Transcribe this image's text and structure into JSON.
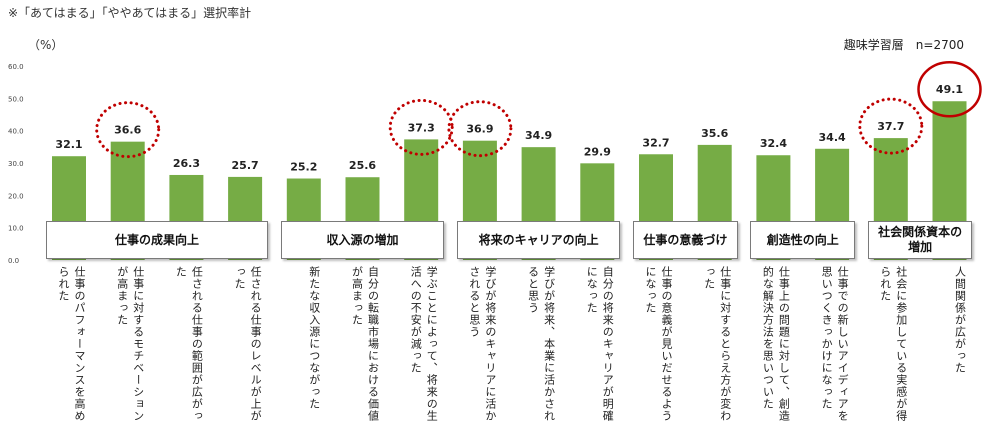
{
  "note": "※「あてはまる」「ややあてはまる」選択率計",
  "unit": "（%）",
  "sample": "趣味学習層　n=2700",
  "chart_data": {
    "type": "bar",
    "title": "",
    "ylabel": "（%）",
    "xlabel": "",
    "ylim": [
      0,
      60
    ],
    "yticks": [
      "60.0",
      "50.0",
      "40.0",
      "30.0",
      "20.0",
      "10.0",
      "0.0"
    ],
    "bar_color": "#76ac45",
    "highlight_color": "#c00000",
    "groups": [
      {
        "label": "仕事の成果向上",
        "count": 4
      },
      {
        "label": "収入源の増加",
        "count": 3
      },
      {
        "label": "将来のキャリアの向上",
        "count": 3
      },
      {
        "label": "仕事の意義づけ",
        "count": 2
      },
      {
        "label": "創造性の向上",
        "count": 2
      },
      {
        "label": "社会関係資本の増加",
        "count": 2
      }
    ],
    "categories": [
      "仕事のパフォーマンスを高められた",
      "仕事に対するモチベーションが高まった",
      "任される仕事の範囲が広がった",
      "任される仕事のレベルが上がった",
      "新たな収入源につながった",
      "自分の転職市場における価値が高まった",
      "学ぶことによって、将来の生活への不安が減った",
      "学びが将来のキャリアに活かされると思う",
      "学びが将来、本業に活かされると思う",
      "自分の将来のキャリアが明確になった",
      "仕事の意義が見いだせるようになった",
      "仕事に対するとらえ方が変わった",
      "仕事上の問題に対して、創造的な解決方法を思いついた",
      "仕事での新しいアイディアを思いつくきっかけになった",
      "社会に参加している実感が得られた",
      "人間関係が広がった"
    ],
    "values": [
      32.1,
      36.6,
      26.3,
      25.7,
      25.2,
      25.6,
      37.3,
      36.9,
      34.9,
      29.9,
      32.7,
      35.6,
      32.4,
      34.4,
      37.7,
      49.1
    ],
    "value_labels": [
      "32.1",
      "36.6",
      "26.3",
      "25.7",
      "25.2",
      "25.6",
      "37.3",
      "36.9",
      "34.9",
      "29.9",
      "32.7",
      "35.6",
      "32.4",
      "34.4",
      "37.7",
      "49.1"
    ],
    "highlighted": [
      {
        "index": 1,
        "style": "dotted"
      },
      {
        "index": 6,
        "style": "dotted"
      },
      {
        "index": 7,
        "style": "dotted"
      },
      {
        "index": 14,
        "style": "dotted"
      },
      {
        "index": 15,
        "style": "solid"
      }
    ]
  }
}
